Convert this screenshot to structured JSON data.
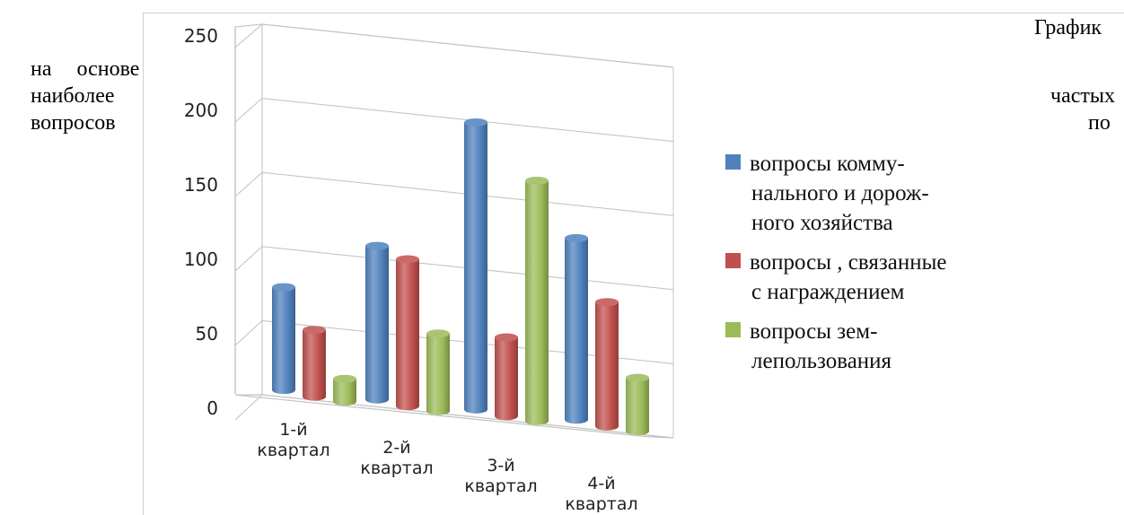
{
  "document": {
    "line1_right": "График",
    "line2_left": "на основе",
    "line3_left": "наиболее",
    "line3_right": "частых",
    "line4_left": "вопросов",
    "line4_right": "по"
  },
  "chart_data": {
    "type": "bar",
    "style": "3d-cylinder",
    "categories": [
      [
        "1-й",
        "квартал"
      ],
      [
        "2-й",
        "квартал"
      ],
      [
        "3-й",
        "квартал"
      ],
      [
        "4-й",
        "квартал"
      ]
    ],
    "series": [
      {
        "name": "вопросы коммунального и дорожного хозяйства",
        "legend_lines": [
          "вопросы комму-",
          "нального и дорож-",
          "ного хозяйства"
        ],
        "color": "#4f81bd",
        "values": [
          77,
          115,
          215,
          136
        ]
      },
      {
        "name": "вопросы , связанные с награждением",
        "legend_lines": [
          "вопросы , связанные",
          "с награждением"
        ],
        "color": "#c0504d",
        "values": [
          50,
          110,
          59,
          93
        ]
      },
      {
        "name": "вопросы землепользования",
        "legend_lines": [
          "вопросы  зем-",
          "лепользования"
        ],
        "color": "#9bbb59",
        "values": [
          17,
          58,
          180,
          40
        ]
      }
    ],
    "ylim": [
      0,
      250
    ],
    "yticks": [
      0,
      50,
      100,
      150,
      200,
      250
    ],
    "grid": true,
    "legend_position": "right"
  }
}
